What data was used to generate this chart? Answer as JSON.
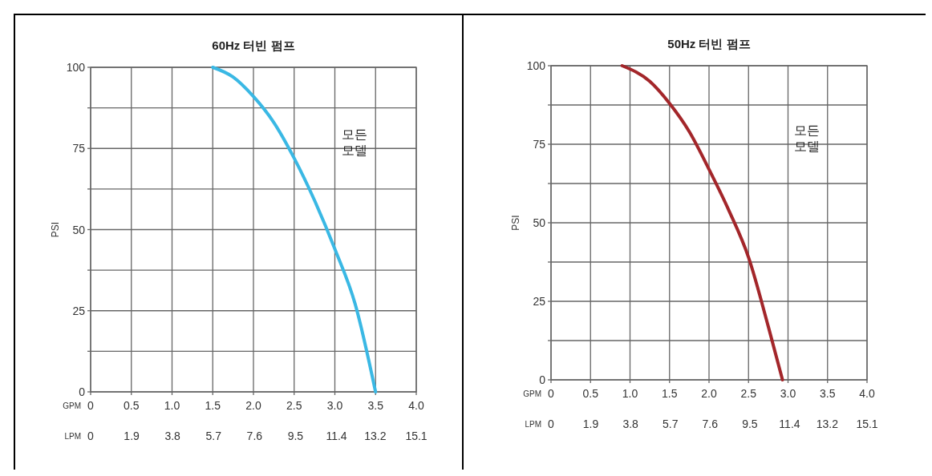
{
  "chart_data": [
    {
      "type": "line",
      "title": "60Hz 터빈 펌프",
      "ylabel": "PSI",
      "xlabel": "GPM",
      "x2label": "LPM",
      "annotations": [
        "모든\n모델"
      ],
      "grid": true,
      "xlim": [
        0,
        4
      ],
      "xticks": [
        0,
        0.5,
        {
          "value": 1,
          "label": "1.0"
        },
        1.5,
        {
          "value": 2,
          "label": "2.0"
        },
        2.5,
        {
          "value": 3,
          "label": "3.0"
        },
        3.5,
        {
          "value": 4,
          "label": "4.0"
        }
      ],
      "x2lim": [
        0,
        15.1
      ],
      "x2ticks": [
        0,
        1.9,
        3.8,
        5.7,
        7.6,
        9.5,
        11.4,
        13.2,
        15.1
      ],
      "ylim": [
        0,
        100
      ],
      "yticks": [
        0,
        {
          "value": 12.5,
          "label": null
        },
        25,
        {
          "value": 37.5,
          "label": null
        },
        50,
        {
          "value": 62.5,
          "label": null
        },
        75,
        {
          "value": 87.5,
          "label": null
        },
        100
      ],
      "series": [
        {
          "color": "#3ab8e4",
          "x": [
            1.5,
            1.75,
            2.0,
            2.25,
            2.5,
            2.75,
            3.0,
            3.25,
            3.5
          ],
          "values": [
            100,
            97,
            91,
            83,
            72,
            59,
            44,
            27,
            0
          ]
        }
      ]
    },
    {
      "type": "line",
      "title": "50Hz 터빈 펌프",
      "ylabel": "PSI",
      "xlabel": "GPM",
      "x2label": "LPM",
      "annotations": [
        "모든\n모델"
      ],
      "grid": true,
      "xlim": [
        0,
        4
      ],
      "xticks": [
        0,
        0.5,
        {
          "value": 1,
          "label": "1.0"
        },
        1.5,
        {
          "value": 2,
          "label": "2.0"
        },
        2.5,
        {
          "value": 3,
          "label": "3.0"
        },
        3.5,
        {
          "value": 4,
          "label": "4.0"
        }
      ],
      "x2lim": [
        0,
        15.1
      ],
      "x2ticks": [
        0,
        1.9,
        3.8,
        5.7,
        7.6,
        9.5,
        11.4,
        13.2,
        15.1
      ],
      "ylim": [
        0,
        100
      ],
      "yticks": [
        0,
        {
          "value": 12.5,
          "label": null
        },
        25,
        {
          "value": 37.5,
          "label": null
        },
        50,
        {
          "value": 62.5,
          "label": null
        },
        75,
        {
          "value": 87.5,
          "label": null
        },
        100
      ],
      "series": [
        {
          "color": "#a3262a",
          "x": [
            0.9,
            1.25,
            1.5,
            1.75,
            2.0,
            2.25,
            2.5,
            2.75,
            2.93
          ],
          "values": [
            100,
            95,
            88,
            79,
            67,
            54,
            39,
            17,
            0
          ]
        }
      ]
    }
  ]
}
